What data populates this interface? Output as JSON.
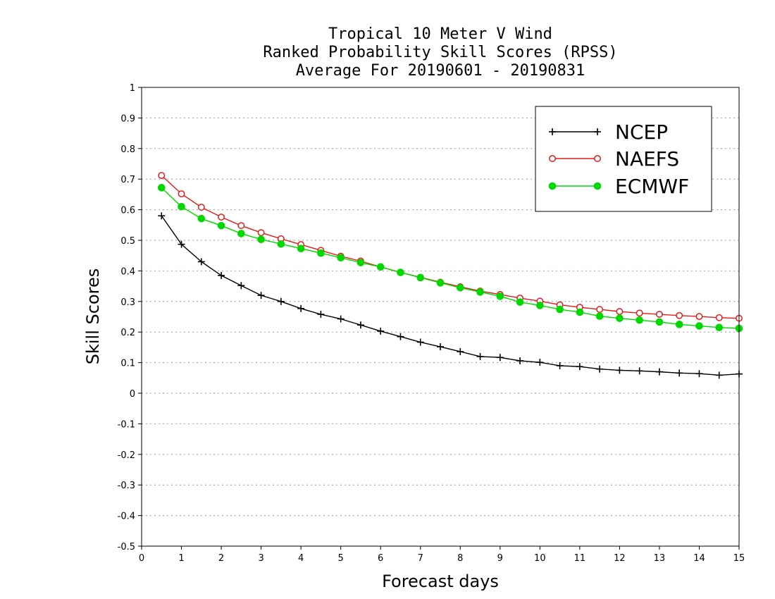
{
  "chart_data": {
    "type": "line",
    "title": "Tropical 10 Meter V Wind",
    "subtitle": "Ranked Probability Skill Scores (RPSS)",
    "subtitle2": "Average For 20190601 - 20190831",
    "xlabel": "Forecast days",
    "ylabel": "Skill Scores",
    "xlim": [
      0,
      15
    ],
    "ylim": [
      -0.5,
      1
    ],
    "xticks": [
      "0",
      "1",
      "2",
      "3",
      "4",
      "5",
      "6",
      "7",
      "8",
      "9",
      "10",
      "11",
      "12",
      "13",
      "14",
      "15"
    ],
    "yticks": [
      "-0.5",
      "-0.4",
      "-0.3",
      "-0.2",
      "-0.1",
      "0",
      "0.1",
      "0.2",
      "0.3",
      "0.4",
      "0.5",
      "0.6",
      "0.7",
      "0.8",
      "0.9",
      "1"
    ],
    "grid": "horizontal-dotted",
    "legend_position": "top-right",
    "x": [
      0.5,
      1,
      1.5,
      2,
      2.5,
      3,
      3.5,
      4,
      4.5,
      5,
      5.5,
      6,
      6.5,
      7,
      7.5,
      8,
      8.5,
      9,
      9.5,
      10,
      10.5,
      11,
      11.5,
      12,
      12.5,
      13,
      13.5,
      14,
      14.5,
      15
    ],
    "series": [
      {
        "name": "NCEP",
        "color": "#000000",
        "marker": "plus",
        "values": [
          0.58,
          0.487,
          0.43,
          0.385,
          0.352,
          0.32,
          0.3,
          0.277,
          0.258,
          0.243,
          0.223,
          0.203,
          0.185,
          0.167,
          0.152,
          0.136,
          0.12,
          0.117,
          0.106,
          0.101,
          0.09,
          0.087,
          0.079,
          0.075,
          0.073,
          0.07,
          0.066,
          0.064,
          0.059,
          0.063
        ]
      },
      {
        "name": "NAEFS",
        "color": "#e41a1c",
        "marker": "open-circle",
        "values": [
          0.712,
          0.652,
          0.608,
          0.576,
          0.548,
          0.525,
          0.505,
          0.486,
          0.467,
          0.448,
          0.432,
          0.413,
          0.395,
          0.379,
          0.363,
          0.348,
          0.334,
          0.323,
          0.311,
          0.301,
          0.289,
          0.281,
          0.274,
          0.267,
          0.262,
          0.258,
          0.254,
          0.251,
          0.247,
          0.245
        ]
      },
      {
        "name": "ECMWF",
        "color": "#00d800",
        "marker": "filled-circle",
        "values": [
          0.672,
          0.61,
          0.571,
          0.548,
          0.522,
          0.503,
          0.488,
          0.473,
          0.458,
          0.443,
          0.427,
          0.413,
          0.395,
          0.378,
          0.361,
          0.345,
          0.331,
          0.317,
          0.298,
          0.287,
          0.274,
          0.265,
          0.252,
          0.245,
          0.239,
          0.233,
          0.225,
          0.22,
          0.215,
          0.212
        ]
      }
    ]
  }
}
